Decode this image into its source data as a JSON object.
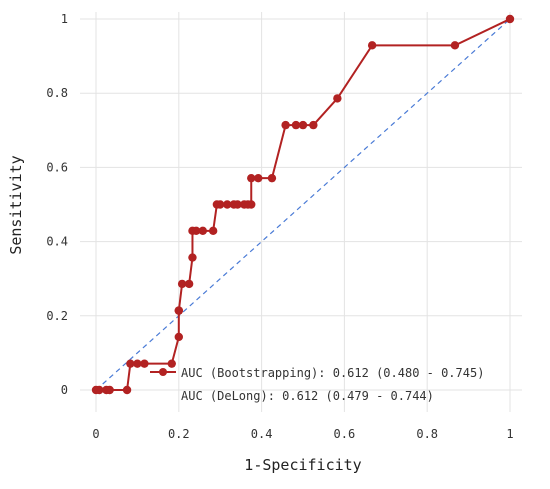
{
  "chart_data": {
    "type": "line",
    "xlabel": "1-Specificity",
    "ylabel": "Sensitivity",
    "xlim": [
      0,
      1
    ],
    "ylim": [
      0,
      1
    ],
    "x_ticks": [
      "0",
      "0.2",
      "0.4",
      "0.6",
      "0.8",
      "1"
    ],
    "y_ticks": [
      "0",
      "0.2",
      "0.4",
      "0.6",
      "0.8",
      "1"
    ],
    "grid": true,
    "colors": {
      "roc": "#b22222",
      "diagonal": "#4a7bd6",
      "grid": "#e3e3e3"
    },
    "series": [
      {
        "x": [
          0,
          0.008,
          0.025,
          0.033,
          0.075,
          0.083,
          0.1,
          0.117,
          0.183,
          0.2,
          0.2,
          0.2,
          0.208,
          0.225,
          0.233,
          0.233,
          0.242,
          0.258,
          0.283,
          0.292,
          0.3,
          0.317,
          0.333,
          0.342,
          0.358,
          0.367,
          0.375,
          0.375,
          0.392,
          0.425,
          0.458,
          0.483,
          0.5,
          0.525,
          0.583,
          0.667,
          0.867,
          1
        ],
        "y": [
          0,
          0,
          0,
          0,
          0,
          0.071,
          0.071,
          0.071,
          0.071,
          0.143,
          0.214,
          0.214,
          0.286,
          0.286,
          0.357,
          0.429,
          0.429,
          0.429,
          0.429,
          0.5,
          0.5,
          0.5,
          0.5,
          0.5,
          0.5,
          0.5,
          0.5,
          0.571,
          0.571,
          0.571,
          0.714,
          0.714,
          0.714,
          0.714,
          0.786,
          0.929,
          0.929,
          1
        ]
      },
      {
        "x": [
          0,
          1
        ],
        "y": [
          0,
          1
        ]
      }
    ],
    "annotations": [
      "AUC (Bootstrapping): 0.612 (0.480 - 0.745)",
      "AUC (DeLong): 0.612 (0.479 - 0.744)"
    ]
  }
}
